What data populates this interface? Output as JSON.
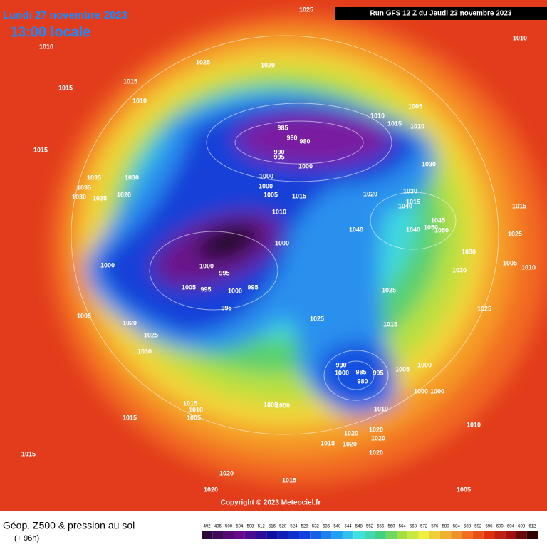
{
  "header": {
    "date": "Lundi 27 novembre 2023",
    "time": "13:00 locale",
    "run": "Run GFS 12 Z du Jeudi 23 novembre 2023"
  },
  "copyright": "Copyright © 2023 Meteociel.fr",
  "footer": {
    "title": "Géop. Z500 & pression au sol",
    "lead": "(+ 96h)"
  },
  "colorbar": [
    492,
    496,
    500,
    504,
    508,
    512,
    516,
    520,
    524,
    528,
    532,
    536,
    540,
    544,
    548,
    552,
    556,
    560,
    564,
    568,
    572,
    576,
    580,
    584,
    588,
    592,
    596,
    600,
    604,
    608,
    612
  ],
  "isobars": [
    "1025",
    "1010",
    "1025",
    "1020",
    "1015",
    "1015",
    "1010",
    "1010",
    "1005",
    "1010",
    "1015",
    "1010",
    "985",
    "980",
    "980",
    "990",
    "995",
    "1000",
    "1015",
    "1035",
    "1030",
    "1035",
    "1030",
    "1025",
    "1020",
    "1000",
    "1000",
    "1005",
    "1015",
    "1020",
    "1030",
    "1030",
    "1015",
    "1040",
    "1010",
    "1045",
    "1050",
    "1050",
    "1040",
    "1040",
    "1015",
    "1025",
    "1000",
    "1030",
    "1000",
    "1000",
    "995",
    "1030",
    "1005",
    "1010",
    "1005",
    "995",
    "1000",
    "995",
    "1025",
    "995",
    "1025",
    "1005",
    "1025",
    "1020",
    "1015",
    "1025",
    "1030",
    "990",
    "985",
    "1000",
    "995",
    "980",
    "1005",
    "1000",
    "1000",
    "1000",
    "1015",
    "1010",
    "1005",
    "1000",
    "1010",
    "1015",
    "1005",
    "1020",
    "1020",
    "1010",
    "1015",
    "1020",
    "1020",
    "1020",
    "1015",
    "1020",
    "1015",
    "1020",
    "1005"
  ]
}
